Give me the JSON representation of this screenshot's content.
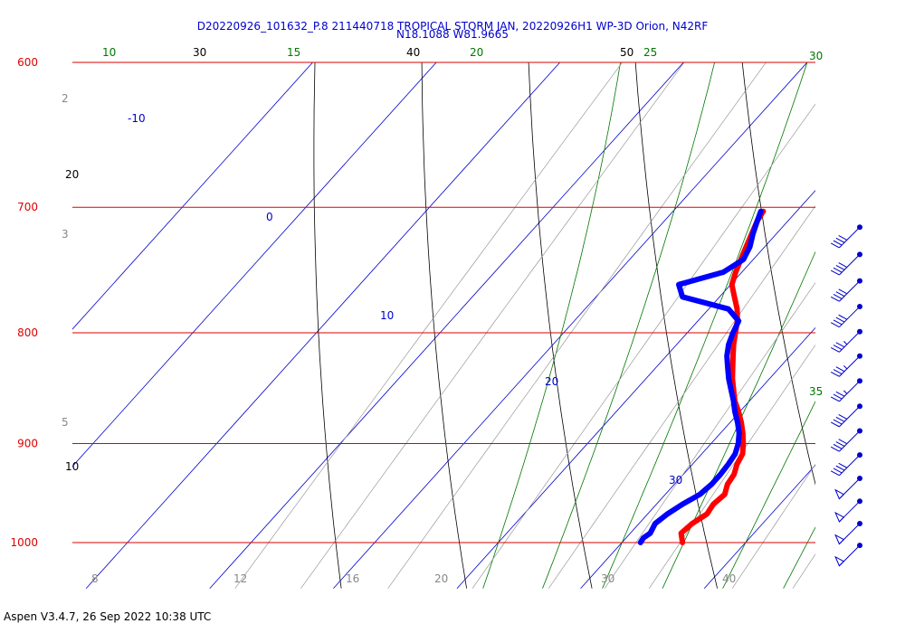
{
  "header": {
    "title_line1": "D20220926_101632_P.8 211440718 TROPICAL STORM JAN, 20220926H1 WP-3D Orion, N42RF",
    "title_line2": "N18.1088 W81.9665"
  },
  "footer": {
    "text": "Aspen V3.4.7, 26 Sep 2022  10:38 UTC"
  },
  "colors": {
    "isobar": "#dd0000",
    "isotherm": "#0000cc",
    "dry_adiabat": "#000000",
    "moist_adiabat": "#007700",
    "mixing_ratio": "#999999",
    "temperature_trace": "#ff0000",
    "dewpoint_trace": "#0000ff",
    "wind_barb": "#0000cc"
  },
  "chart_data": {
    "type": "skew-t",
    "pressure_range_hPa": [
      1000,
      600
    ],
    "isobars": [
      {
        "p": 600,
        "label": "600"
      },
      {
        "p": 700,
        "label": "700"
      },
      {
        "p": 800,
        "label": "800"
      },
      {
        "p": 900,
        "label": "900"
      },
      {
        "p": 1000,
        "label": "1000"
      }
    ],
    "isotherm_labels": [
      "-10",
      "0",
      "10",
      "20",
      "30"
    ],
    "dry_adiabat_labels": [
      "30",
      "40",
      "50",
      "20",
      "10"
    ],
    "moist_adiabat_labels": [
      "10",
      "15",
      "20",
      "25",
      "30",
      "35"
    ],
    "mixing_ratio_labels": [
      "2",
      "3",
      "5",
      "8",
      "12",
      "16",
      "20",
      "30",
      "40"
    ],
    "series": [
      {
        "name": "temperature",
        "points": [
          [
            1000,
            24.9
          ],
          [
            995,
            24.5
          ],
          [
            990,
            24.1
          ],
          [
            980,
            24.3
          ],
          [
            970,
            24.8
          ],
          [
            960,
            24.6
          ],
          [
            950,
            24.8
          ],
          [
            940,
            24.3
          ],
          [
            930,
            24.1
          ],
          [
            920,
            23.6
          ],
          [
            910,
            23.3
          ],
          [
            900,
            22.6
          ],
          [
            890,
            21.8
          ],
          [
            880,
            20.9
          ],
          [
            870,
            19.9
          ],
          [
            860,
            18.8
          ],
          [
            850,
            17.9
          ],
          [
            840,
            17.0
          ],
          [
            830,
            16.2
          ],
          [
            820,
            15.4
          ],
          [
            810,
            14.6
          ],
          [
            800,
            13.9
          ],
          [
            790,
            13.2
          ],
          [
            780,
            12.3
          ],
          [
            770,
            11.2
          ],
          [
            760,
            10.1
          ],
          [
            750,
            9.5
          ],
          [
            740,
            9.0
          ],
          [
            730,
            8.5
          ],
          [
            720,
            8.0
          ],
          [
            710,
            7.5
          ],
          [
            703,
            7.3
          ]
        ]
      },
      {
        "name": "dewpoint",
        "points": [
          [
            1000,
            21.5
          ],
          [
            995,
            21.4
          ],
          [
            990,
            21.6
          ],
          [
            980,
            21.3
          ],
          [
            970,
            21.6
          ],
          [
            960,
            22.1
          ],
          [
            950,
            22.8
          ],
          [
            940,
            23.0
          ],
          [
            930,
            23.0
          ],
          [
            920,
            22.9
          ],
          [
            910,
            22.7
          ],
          [
            900,
            22.2
          ],
          [
            890,
            21.5
          ],
          [
            880,
            20.6
          ],
          [
            870,
            19.6
          ],
          [
            860,
            18.7
          ],
          [
            850,
            17.7
          ],
          [
            840,
            16.7
          ],
          [
            830,
            15.8
          ],
          [
            820,
            14.9
          ],
          [
            810,
            14.2
          ],
          [
            800,
            13.7
          ],
          [
            790,
            13.3
          ],
          [
            780,
            11.6
          ],
          [
            770,
            7.0
          ],
          [
            760,
            5.8
          ],
          [
            750,
            8.5
          ],
          [
            740,
            9.2
          ],
          [
            730,
            8.8
          ],
          [
            720,
            8.1
          ],
          [
            710,
            7.5
          ],
          [
            703,
            7.1
          ]
        ]
      }
    ],
    "wind_barbs": [
      {
        "p": 715,
        "dir": 100,
        "speed_kt": 40
      },
      {
        "p": 736,
        "dir": 100,
        "speed_kt": 40
      },
      {
        "p": 757,
        "dir": 100,
        "speed_kt": 40
      },
      {
        "p": 778,
        "dir": 100,
        "speed_kt": 40
      },
      {
        "p": 799,
        "dir": 100,
        "speed_kt": 35
      },
      {
        "p": 820,
        "dir": 100,
        "speed_kt": 35
      },
      {
        "p": 842,
        "dir": 100,
        "speed_kt": 35
      },
      {
        "p": 865,
        "dir": 100,
        "speed_kt": 40
      },
      {
        "p": 888,
        "dir": 100,
        "speed_kt": 40
      },
      {
        "p": 911,
        "dir": 100,
        "speed_kt": 40
      },
      {
        "p": 934,
        "dir": 100,
        "speed_kt": 50
      },
      {
        "p": 957,
        "dir": 100,
        "speed_kt": 50
      },
      {
        "p": 980,
        "dir": 100,
        "speed_kt": 50
      },
      {
        "p": 1003,
        "dir": 100,
        "speed_kt": 50
      }
    ]
  }
}
